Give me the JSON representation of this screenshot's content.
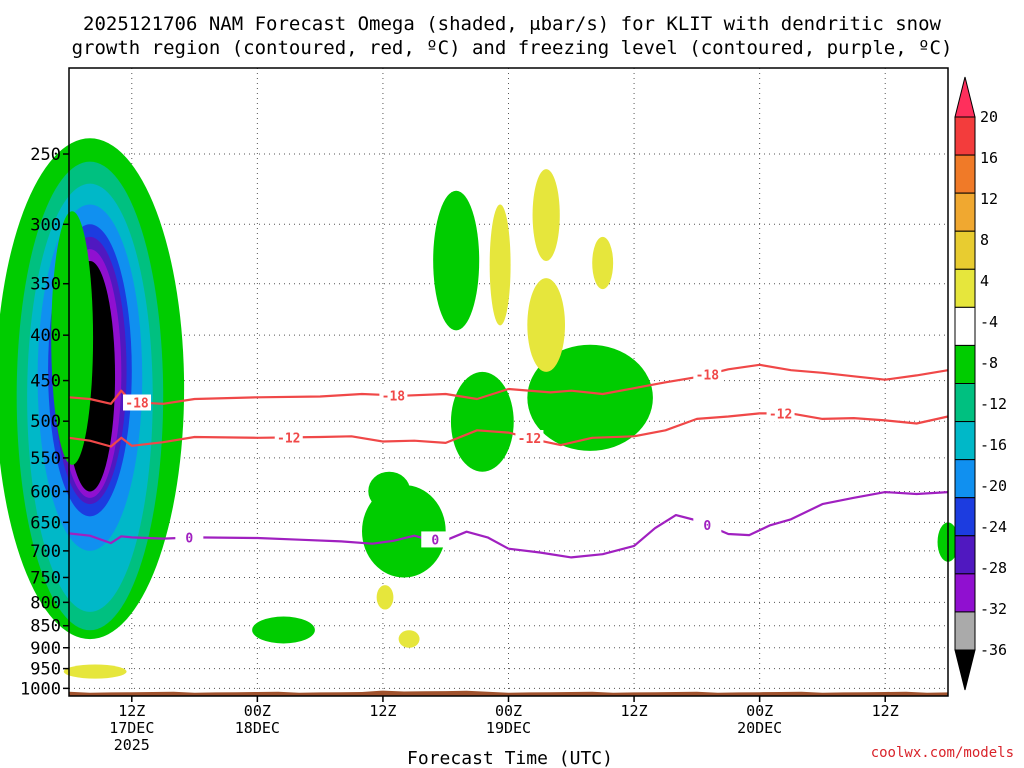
{
  "chart_data": {
    "type": "heatmap",
    "title_line1": "2025121706 NAM Forecast Omega (shaded, μbar/s) for KLIT with dendritic snow",
    "title_line2": "growth region (contoured, red, ºC) and freezing level (contoured, purple, ºC)",
    "xlabel": "Forecast Time (UTC)",
    "x_ticks": [
      {
        "hour": 6,
        "line1": "12Z",
        "line2": "17DEC",
        "line3": "2025"
      },
      {
        "hour": 18,
        "line1": "00Z",
        "line2": "18DEC",
        "line3": ""
      },
      {
        "hour": 30,
        "line1": "12Z",
        "line2": "",
        "line3": ""
      },
      {
        "hour": 42,
        "line1": "00Z",
        "line2": "19DEC",
        "line3": ""
      },
      {
        "hour": 54,
        "line1": "12Z",
        "line2": "",
        "line3": ""
      },
      {
        "hour": 66,
        "line1": "00Z",
        "line2": "20DEC",
        "line3": ""
      },
      {
        "hour": 78,
        "line1": "12Z",
        "line2": "",
        "line3": ""
      }
    ],
    "x_range_hours": [
      0,
      84
    ],
    "y_ticks": [
      250,
      300,
      350,
      400,
      450,
      500,
      550,
      600,
      650,
      700,
      750,
      800,
      850,
      900,
      950,
      1000
    ],
    "y_range_mb": [
      200,
      1020
    ],
    "y_scale": "log",
    "grid": true,
    "colorbar": {
      "labels": [
        "20",
        "16",
        "12",
        "8",
        "4",
        "-4",
        "-8",
        "-12",
        "-16",
        "-20",
        "-24",
        "-28",
        "-32",
        "-36"
      ],
      "colors": [
        "#ff2f5c",
        "#f33c3c",
        "#f07a28",
        "#f0a830",
        "#e8cc30",
        "#e6e63c",
        "#ffffff",
        "#00cc00",
        "#00c080",
        "#00b8c8",
        "#1090f0",
        "#1c3ce0",
        "#5018c0",
        "#9010d0",
        "#aaaaaa",
        "#000000"
      ]
    },
    "contours": {
      "dgz_minus18": {
        "label": "-18",
        "color": "#f04848",
        "points": [
          [
            0,
            470
          ],
          [
            2,
            472
          ],
          [
            4,
            478
          ],
          [
            5,
            462
          ],
          [
            6,
            476
          ],
          [
            9,
            478
          ],
          [
            12,
            472
          ],
          [
            18,
            470
          ],
          [
            24,
            469
          ],
          [
            28,
            466
          ],
          [
            32,
            468
          ],
          [
            36,
            466
          ],
          [
            39,
            472
          ],
          [
            42,
            460
          ],
          [
            46,
            464
          ],
          [
            48,
            462
          ],
          [
            51,
            466
          ],
          [
            54,
            459
          ],
          [
            57,
            452
          ],
          [
            60,
            446
          ],
          [
            63,
            437
          ],
          [
            66,
            432
          ],
          [
            69,
            438
          ],
          [
            72,
            441
          ],
          [
            75,
            445
          ],
          [
            78,
            449
          ],
          [
            81,
            444
          ],
          [
            84,
            438
          ]
        ],
        "labels_at_hours": [
          6.5,
          31,
          61
        ]
      },
      "dgz_minus12": {
        "label": "-12",
        "color": "#f04848",
        "points": [
          [
            0,
            522
          ],
          [
            2,
            526
          ],
          [
            4,
            534
          ],
          [
            5,
            522
          ],
          [
            6,
            533
          ],
          [
            9,
            528
          ],
          [
            12,
            521
          ],
          [
            18,
            522
          ],
          [
            24,
            521
          ],
          [
            27,
            520
          ],
          [
            30,
            527
          ],
          [
            33,
            526
          ],
          [
            36,
            529
          ],
          [
            39,
            512
          ],
          [
            42,
            515
          ],
          [
            45,
            526
          ],
          [
            47,
            532
          ],
          [
            50,
            522
          ],
          [
            54,
            520
          ],
          [
            57,
            512
          ],
          [
            60,
            497
          ],
          [
            63,
            494
          ],
          [
            66,
            490
          ],
          [
            69,
            490
          ],
          [
            72,
            497
          ],
          [
            75,
            496
          ],
          [
            78,
            499
          ],
          [
            81,
            503
          ],
          [
            84,
            494
          ]
        ],
        "labels_at_hours": [
          21,
          44,
          68
        ]
      },
      "freezing_0": {
        "label": "0",
        "color": "#a020c0",
        "points": [
          [
            0,
            669
          ],
          [
            2,
            673
          ],
          [
            4,
            686
          ],
          [
            5,
            674
          ],
          [
            6,
            676
          ],
          [
            9,
            678
          ],
          [
            12,
            676
          ],
          [
            18,
            677
          ],
          [
            22,
            680
          ],
          [
            26,
            683
          ],
          [
            29,
            687
          ],
          [
            31,
            682
          ],
          [
            33,
            673
          ],
          [
            34,
            678
          ],
          [
            36,
            681
          ],
          [
            38,
            666
          ],
          [
            40,
            676
          ],
          [
            42,
            696
          ],
          [
            45,
            703
          ],
          [
            48,
            712
          ],
          [
            51,
            706
          ],
          [
            54,
            691
          ],
          [
            56,
            660
          ],
          [
            58,
            638
          ],
          [
            60,
            647
          ],
          [
            63,
            670
          ],
          [
            65,
            672
          ],
          [
            67,
            655
          ],
          [
            69,
            645
          ],
          [
            72,
            620
          ],
          [
            75,
            610
          ],
          [
            78,
            601
          ],
          [
            81,
            604
          ],
          [
            84,
            601
          ]
        ],
        "labels_at_hours": [
          11.5,
          35,
          61
        ]
      }
    },
    "credit": "coolwx.com/models"
  }
}
